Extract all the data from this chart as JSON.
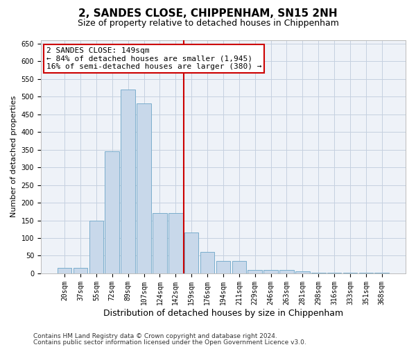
{
  "title": "2, SANDES CLOSE, CHIPPENHAM, SN15 2NH",
  "subtitle": "Size of property relative to detached houses in Chippenham",
  "xlabel": "Distribution of detached houses by size in Chippenham",
  "ylabel": "Number of detached properties",
  "categories": [
    "20sqm",
    "37sqm",
    "55sqm",
    "72sqm",
    "89sqm",
    "107sqm",
    "124sqm",
    "142sqm",
    "159sqm",
    "176sqm",
    "194sqm",
    "211sqm",
    "229sqm",
    "246sqm",
    "263sqm",
    "281sqm",
    "298sqm",
    "316sqm",
    "333sqm",
    "351sqm",
    "368sqm"
  ],
  "values": [
    15,
    15,
    150,
    345,
    520,
    480,
    170,
    170,
    115,
    60,
    35,
    35,
    10,
    10,
    10,
    5,
    2,
    2,
    2,
    2,
    2
  ],
  "bar_color": "#c8d8ea",
  "bar_edge_color": "#7aadcc",
  "vline_x_index": 7,
  "vline_color": "#cc0000",
  "annotation_line1": "2 SANDES CLOSE: 149sqm",
  "annotation_line2": "← 84% of detached houses are smaller (1,945)",
  "annotation_line3": "16% of semi-detached houses are larger (380) →",
  "annotation_box_color": "#cc0000",
  "ylim": [
    0,
    660
  ],
  "yticks": [
    0,
    50,
    100,
    150,
    200,
    250,
    300,
    350,
    400,
    450,
    500,
    550,
    600,
    650
  ],
  "footer1": "Contains HM Land Registry data © Crown copyright and database right 2024.",
  "footer2": "Contains public sector information licensed under the Open Government Licence v3.0.",
  "bg_color": "#eef2f8",
  "grid_color": "#c5d0e0",
  "title_fontsize": 11,
  "subtitle_fontsize": 9,
  "xlabel_fontsize": 9,
  "ylabel_fontsize": 8,
  "tick_fontsize": 7,
  "annotation_fontsize": 8,
  "footer_fontsize": 6.5
}
